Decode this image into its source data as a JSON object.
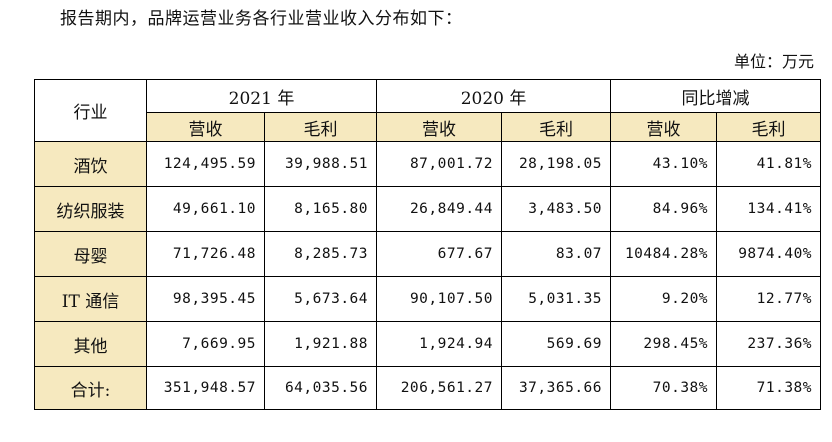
{
  "intro": "报告期内，品牌运营业务各行业营业收入分布如下：",
  "unit": "单位：万元",
  "table": {
    "corner": "行业",
    "groups": [
      "2021 年",
      "2020 年",
      "同比增减"
    ],
    "subheaders": [
      "营收",
      "毛利",
      "营收",
      "毛利",
      "营收",
      "毛利"
    ],
    "rows": [
      {
        "label": "酒饮",
        "values": [
          "124,495.59",
          "39,988.51",
          "87,001.72",
          "28,198.05",
          "43.10%",
          "41.81%"
        ]
      },
      {
        "label": "纺织服装",
        "values": [
          "49,661.10",
          "8,165.80",
          "26,849.44",
          "3,483.50",
          "84.96%",
          "134.41%"
        ]
      },
      {
        "label": "母婴",
        "values": [
          "71,726.48",
          "8,285.73",
          "677.67",
          "83.07",
          "10484.28%",
          "9874.40%"
        ]
      },
      {
        "label": "IT 通信",
        "values": [
          "98,395.45",
          "5,673.64",
          "90,107.50",
          "5,031.35",
          "9.20%",
          "12.77%"
        ]
      },
      {
        "label": "其他",
        "values": [
          "7,669.95",
          "1,921.88",
          "1,924.94",
          "569.69",
          "298.45%",
          "237.36%"
        ]
      },
      {
        "label": "合计:",
        "values": [
          "351,948.57",
          "64,035.56",
          "206,561.27",
          "37,365.66",
          "70.38%",
          "71.38%"
        ]
      }
    ]
  }
}
